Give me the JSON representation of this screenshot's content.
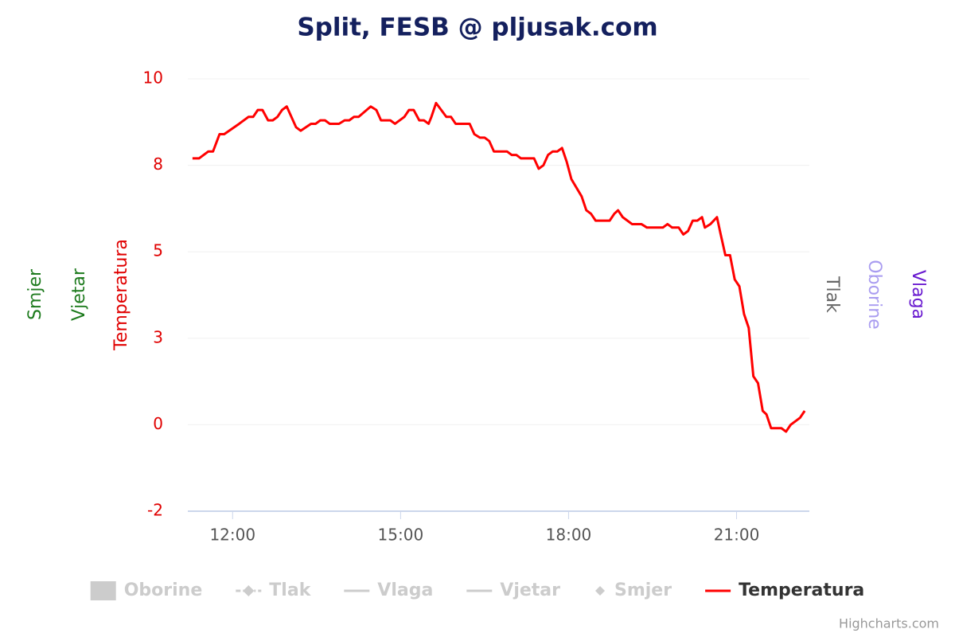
{
  "chart_data": {
    "type": "line",
    "title": "Split, FESB @ pljusak.com",
    "credits": "Highcharts.com",
    "axis_titles": [
      {
        "text": "Smjer",
        "color": "#1e7b1e",
        "side": "left"
      },
      {
        "text": "Vjetar",
        "color": "#1e7b1e",
        "side": "left"
      },
      {
        "text": "Temperatura",
        "color": "#e00000",
        "side": "left"
      },
      {
        "text": "Tlak",
        "color": "#666666",
        "side": "right"
      },
      {
        "text": "Oborine",
        "color": "#a99cf0",
        "side": "right"
      },
      {
        "text": "Vlaga",
        "color": "#6a1bd0",
        "side": "right"
      }
    ],
    "xlim": [
      "11:12",
      "22:18"
    ],
    "xticks": [
      "12:00",
      "15:00",
      "18:00",
      "21:00"
    ],
    "ylim": [
      -2.5,
      10
    ],
    "yticks": [
      {
        "value": -2.5,
        "label": "-2"
      },
      0,
      {
        "value": 2.5,
        "label": "3"
      },
      5,
      {
        "value": 7.5,
        "label": "8"
      },
      10
    ],
    "grid": true,
    "x": [
      "11:17",
      "11:24",
      "11:34",
      "11:39",
      "11:46",
      "11:51",
      "12:07",
      "12:17",
      "12:22",
      "12:27",
      "12:32",
      "12:38",
      "12:43",
      "12:48",
      "12:53",
      "12:58",
      "13:08",
      "13:13",
      "13:24",
      "13:29",
      "13:34",
      "13:39",
      "13:44",
      "13:54",
      "14:00",
      "14:05",
      "14:10",
      "14:15",
      "14:28",
      "14:34",
      "14:39",
      "14:49",
      "14:54",
      "15:04",
      "15:09",
      "15:14",
      "15:20",
      "15:25",
      "15:30",
      "15:33",
      "15:38",
      "15:49",
      "15:54",
      "15:59",
      "16:14",
      "16:19",
      "16:25",
      "16:30",
      "16:35",
      "16:40",
      "16:54",
      "16:59",
      "17:04",
      "17:09",
      "17:23",
      "17:28",
      "17:33",
      "17:38",
      "17:43",
      "17:48",
      "17:53",
      "17:58",
      "18:03",
      "18:14",
      "18:19",
      "18:24",
      "18:29",
      "18:44",
      "18:49",
      "18:53",
      "18:58",
      "19:08",
      "19:18",
      "19:24",
      "19:41",
      "19:46",
      "19:51",
      "19:58",
      "20:03",
      "20:08",
      "20:13",
      "20:18",
      "20:23",
      "20:26",
      "20:32",
      "20:39",
      "20:43",
      "20:48",
      "20:53",
      "20:58",
      "21:03",
      "21:08",
      "21:13",
      "21:18",
      "21:23",
      "21:28",
      "21:32",
      "21:37",
      "21:48",
      "21:53",
      "21:58",
      "22:03",
      "22:08",
      "22:13"
    ],
    "series": [
      {
        "name": "Oborine",
        "color": "#cccccc",
        "symbol": "area",
        "visible": false
      },
      {
        "name": "Tlak",
        "color": "#cccccc",
        "symbol": "dashdot-diamond",
        "visible": false
      },
      {
        "name": "Vlaga",
        "color": "#cccccc",
        "symbol": "line",
        "visible": false
      },
      {
        "name": "Vjetar",
        "color": "#cccccc",
        "symbol": "line",
        "visible": false
      },
      {
        "name": "Smjer",
        "color": "#cccccc",
        "symbol": "diamond",
        "visible": false
      },
      {
        "name": "Temperatura",
        "color": "#ff0000",
        "symbol": "line",
        "visible": true,
        "values": [
          7.7,
          7.7,
          7.9,
          7.9,
          8.4,
          8.4,
          8.7,
          8.9,
          8.9,
          9.1,
          9.1,
          8.8,
          8.8,
          8.9,
          9.1,
          9.2,
          8.6,
          8.5,
          8.7,
          8.7,
          8.8,
          8.8,
          8.7,
          8.7,
          8.8,
          8.8,
          8.9,
          8.9,
          9.2,
          9.1,
          8.8,
          8.8,
          8.7,
          8.9,
          9.1,
          9.1,
          8.8,
          8.8,
          8.7,
          8.9,
          9.3,
          8.9,
          8.9,
          8.7,
          8.7,
          8.4,
          8.3,
          8.3,
          8.2,
          7.9,
          7.9,
          7.8,
          7.8,
          7.7,
          7.7,
          7.4,
          7.5,
          7.8,
          7.9,
          7.9,
          8.0,
          7.6,
          7.1,
          6.6,
          6.2,
          6.1,
          5.9,
          5.9,
          6.1,
          6.2,
          6.0,
          5.8,
          5.8,
          5.7,
          5.7,
          5.8,
          5.7,
          5.7,
          5.5,
          5.6,
          5.9,
          5.9,
          6.0,
          5.7,
          5.8,
          6.0,
          5.5,
          4.9,
          4.9,
          4.2,
          4.0,
          3.2,
          2.8,
          1.4,
          1.2,
          0.4,
          0.3,
          -0.1,
          -0.1,
          -0.2,
          0.0,
          0.1,
          0.2,
          0.4
        ]
      }
    ]
  }
}
